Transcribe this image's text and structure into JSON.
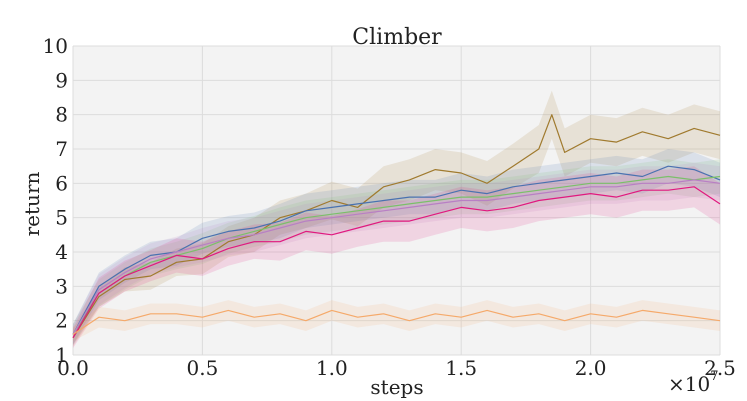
{
  "chart_data": {
    "type": "line",
    "title": "Climber",
    "xlabel": "steps",
    "ylabel": "return",
    "x_multiplier_label": "×10",
    "x_multiplier_exponent": "7",
    "xlim": [
      0,
      2.5
    ],
    "ylim": [
      1,
      10
    ],
    "xticks": [
      "0.0",
      "0.5",
      "1.0",
      "1.5",
      "2.0",
      "2.5"
    ],
    "xtick_values": [
      0,
      0.5,
      1.0,
      1.5,
      2.0,
      2.5
    ],
    "yticks": [
      "1",
      "2",
      "3",
      "4",
      "5",
      "6",
      "7",
      "8",
      "9",
      "10"
    ],
    "ytick_values": [
      1,
      2,
      3,
      4,
      5,
      6,
      7,
      8,
      9,
      10
    ],
    "grid": true,
    "legend": "none",
    "series": [
      {
        "color": "#a07a2e",
        "x": [
          0,
          0.1,
          0.2,
          0.3,
          0.4,
          0.5,
          0.6,
          0.7,
          0.8,
          0.9,
          1.0,
          1.1,
          1.2,
          1.3,
          1.4,
          1.5,
          1.6,
          1.7,
          1.8,
          1.85,
          1.9,
          2.0,
          2.1,
          2.2,
          2.3,
          2.4,
          2.5
        ],
        "y": [
          1.5,
          2.7,
          3.2,
          3.3,
          3.7,
          3.8,
          4.3,
          4.5,
          5.0,
          5.2,
          5.5,
          5.3,
          5.9,
          6.1,
          6.4,
          6.3,
          6.0,
          6.5,
          7.0,
          8.0,
          6.9,
          7.3,
          7.2,
          7.5,
          7.3,
          7.6,
          7.4
        ],
        "band": [
          0.25,
          0.3,
          0.35,
          0.4,
          0.4,
          0.45,
          0.45,
          0.5,
          0.5,
          0.5,
          0.55,
          0.55,
          0.6,
          0.6,
          0.6,
          0.6,
          0.65,
          0.65,
          0.7,
          0.7,
          0.7,
          0.7,
          0.7,
          0.7,
          0.7,
          0.7,
          0.7
        ]
      },
      {
        "color": "#4a72b0",
        "x": [
          0,
          0.1,
          0.2,
          0.3,
          0.4,
          0.5,
          0.6,
          0.7,
          0.8,
          0.9,
          1.0,
          1.1,
          1.2,
          1.3,
          1.4,
          1.5,
          1.6,
          1.7,
          1.8,
          1.9,
          2.0,
          2.1,
          2.2,
          2.3,
          2.4,
          2.5
        ],
        "y": [
          1.6,
          3.0,
          3.5,
          3.9,
          4.0,
          4.4,
          4.6,
          4.7,
          4.9,
          5.2,
          5.3,
          5.4,
          5.5,
          5.6,
          5.6,
          5.8,
          5.7,
          5.9,
          6.0,
          6.1,
          6.2,
          6.3,
          6.2,
          6.5,
          6.4,
          6.1
        ],
        "band": [
          0.3,
          0.4,
          0.4,
          0.4,
          0.4,
          0.45,
          0.45,
          0.45,
          0.5,
          0.5,
          0.5,
          0.5,
          0.5,
          0.5,
          0.5,
          0.5,
          0.5,
          0.5,
          0.5,
          0.5,
          0.5,
          0.5,
          0.5,
          0.5,
          0.5,
          0.5
        ]
      },
      {
        "color": "#7bbf6a",
        "x": [
          0,
          0.1,
          0.2,
          0.3,
          0.4,
          0.5,
          0.6,
          0.7,
          0.8,
          0.9,
          1.0,
          1.1,
          1.2,
          1.3,
          1.4,
          1.5,
          1.6,
          1.7,
          1.8,
          1.9,
          2.0,
          2.1,
          2.2,
          2.3,
          2.4,
          2.5
        ],
        "y": [
          1.6,
          2.8,
          3.3,
          3.7,
          3.9,
          4.1,
          4.4,
          4.6,
          4.8,
          5.0,
          5.1,
          5.2,
          5.3,
          5.4,
          5.5,
          5.6,
          5.6,
          5.7,
          5.8,
          5.9,
          6.0,
          6.0,
          6.1,
          6.2,
          6.1,
          6.2
        ],
        "band": [
          0.3,
          0.4,
          0.4,
          0.4,
          0.4,
          0.45,
          0.45,
          0.45,
          0.5,
          0.5,
          0.5,
          0.5,
          0.5,
          0.5,
          0.5,
          0.5,
          0.5,
          0.5,
          0.5,
          0.5,
          0.5,
          0.5,
          0.5,
          0.5,
          0.5,
          0.5
        ]
      },
      {
        "color": "#b87fc4",
        "x": [
          0,
          0.1,
          0.2,
          0.3,
          0.4,
          0.5,
          0.6,
          0.7,
          0.8,
          0.9,
          1.0,
          1.1,
          1.2,
          1.3,
          1.4,
          1.5,
          1.6,
          1.7,
          1.8,
          1.9,
          2.0,
          2.1,
          2.2,
          2.3,
          2.4,
          2.5
        ],
        "y": [
          1.6,
          2.9,
          3.4,
          3.8,
          4.0,
          4.2,
          4.4,
          4.5,
          4.7,
          4.9,
          5.0,
          5.1,
          5.2,
          5.3,
          5.4,
          5.5,
          5.5,
          5.6,
          5.7,
          5.8,
          5.9,
          5.9,
          6.0,
          6.0,
          6.1,
          6.0
        ],
        "band": [
          0.3,
          0.45,
          0.45,
          0.45,
          0.45,
          0.5,
          0.5,
          0.5,
          0.5,
          0.5,
          0.5,
          0.5,
          0.5,
          0.5,
          0.5,
          0.5,
          0.5,
          0.5,
          0.5,
          0.5,
          0.5,
          0.5,
          0.5,
          0.5,
          0.5,
          0.5
        ]
      },
      {
        "color": "#e0197f",
        "x": [
          0,
          0.1,
          0.2,
          0.3,
          0.4,
          0.5,
          0.6,
          0.7,
          0.8,
          0.9,
          1.0,
          1.1,
          1.2,
          1.3,
          1.4,
          1.5,
          1.6,
          1.7,
          1.8,
          1.9,
          2.0,
          2.1,
          2.2,
          2.3,
          2.4,
          2.5
        ],
        "y": [
          1.5,
          2.8,
          3.3,
          3.6,
          3.9,
          3.8,
          4.1,
          4.3,
          4.3,
          4.6,
          4.5,
          4.7,
          4.9,
          4.9,
          5.1,
          5.3,
          5.2,
          5.3,
          5.5,
          5.6,
          5.7,
          5.6,
          5.8,
          5.8,
          5.9,
          5.4
        ],
        "band": [
          0.3,
          0.45,
          0.45,
          0.45,
          0.5,
          0.5,
          0.5,
          0.5,
          0.55,
          0.55,
          0.55,
          0.55,
          0.6,
          0.6,
          0.6,
          0.6,
          0.6,
          0.6,
          0.6,
          0.6,
          0.6,
          0.6,
          0.6,
          0.6,
          0.6,
          0.6
        ]
      },
      {
        "color": "#f5a96a",
        "x": [
          0,
          0.1,
          0.2,
          0.3,
          0.4,
          0.5,
          0.6,
          0.7,
          0.8,
          0.9,
          1.0,
          1.1,
          1.2,
          1.3,
          1.4,
          1.5,
          1.6,
          1.7,
          1.8,
          1.9,
          2.0,
          2.1,
          2.2,
          2.3,
          2.4,
          2.5
        ],
        "y": [
          1.6,
          2.1,
          2.0,
          2.2,
          2.2,
          2.1,
          2.3,
          2.1,
          2.2,
          2.0,
          2.3,
          2.1,
          2.2,
          2.0,
          2.2,
          2.1,
          2.3,
          2.1,
          2.2,
          2.0,
          2.2,
          2.1,
          2.3,
          2.2,
          2.1,
          2.0
        ],
        "band": [
          0.2,
          0.3,
          0.3,
          0.3,
          0.3,
          0.3,
          0.3,
          0.3,
          0.3,
          0.3,
          0.3,
          0.3,
          0.3,
          0.3,
          0.3,
          0.3,
          0.3,
          0.3,
          0.3,
          0.3,
          0.3,
          0.3,
          0.3,
          0.3,
          0.3,
          0.3
        ]
      }
    ]
  }
}
